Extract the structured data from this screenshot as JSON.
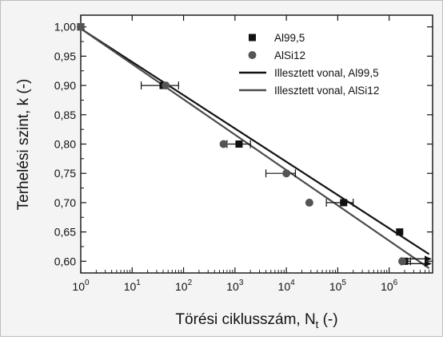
{
  "chart_data": {
    "type": "scatter",
    "xlabel": "Törési ciklusszám, N",
    "xlabel_sub": "t",
    "xlabel_unit": " (-)",
    "ylabel": "Terhelési szint, k (-)",
    "x_scale": "log",
    "xlim": [
      1,
      7000000
    ],
    "ylim": [
      0.58,
      1.02
    ],
    "x_tick_values": [
      1,
      10,
      100,
      1000,
      10000,
      100000,
      1000000
    ],
    "x_tick_labels": [
      {
        "base": "10",
        "exp": "0"
      },
      {
        "base": "10",
        "exp": "1"
      },
      {
        "base": "10",
        "exp": "2"
      },
      {
        "base": "10",
        "exp": "3"
      },
      {
        "base": "10",
        "exp": "4"
      },
      {
        "base": "10",
        "exp": "5"
      },
      {
        "base": "10",
        "exp": "6"
      }
    ],
    "y_ticks": [
      0.6,
      0.65,
      0.7,
      0.75,
      0.8,
      0.85,
      0.9,
      0.95,
      1.0
    ],
    "y_tick_labels": [
      "0,60",
      "0,65",
      "0,70",
      "0,75",
      "0,80",
      "0,85",
      "0,90",
      "0,95",
      "1,00"
    ],
    "grid": false,
    "legend_position": "top-right",
    "series": [
      {
        "name": "Al99,5",
        "kind": "points",
        "marker": "square",
        "color": "#111111",
        "points": [
          {
            "x": 1,
            "y": 1.0
          },
          {
            "x": 40,
            "y": 0.9,
            "xerr": [
              15,
              80
            ]
          },
          {
            "x": 1200,
            "y": 0.8,
            "xerr": [
              700,
              2000
            ]
          },
          {
            "x": 130000,
            "y": 0.7,
            "xerr": [
              60000,
              200000
            ]
          },
          {
            "x": 1600000,
            "y": 0.65
          },
          {
            "x": 2000000,
            "y": 0.6,
            "xerr": [
              1700000,
              2600000
            ],
            "runout": true
          }
        ]
      },
      {
        "name": "AlSi12",
        "kind": "points",
        "marker": "circle",
        "color": "#555555",
        "points": [
          {
            "x": 1,
            "y": 1.0
          },
          {
            "x": 45,
            "y": 0.9
          },
          {
            "x": 600,
            "y": 0.8
          },
          {
            "x": 10000,
            "y": 0.75,
            "xerr": [
              4000,
              15000
            ]
          },
          {
            "x": 28000,
            "y": 0.7
          },
          {
            "x": 1800000,
            "y": 0.6,
            "runout": true
          }
        ]
      },
      {
        "name": "Illesztett vonal, Al99,5",
        "kind": "line",
        "color": "#111111",
        "x": [
          1,
          6000000
        ],
        "y": [
          0.997,
          0.612
        ]
      },
      {
        "name": "Illesztett vonal, AlSi12",
        "kind": "line",
        "color": "#4a4a4a",
        "x": [
          1,
          6000000
        ],
        "y": [
          0.997,
          0.588
        ]
      }
    ]
  }
}
